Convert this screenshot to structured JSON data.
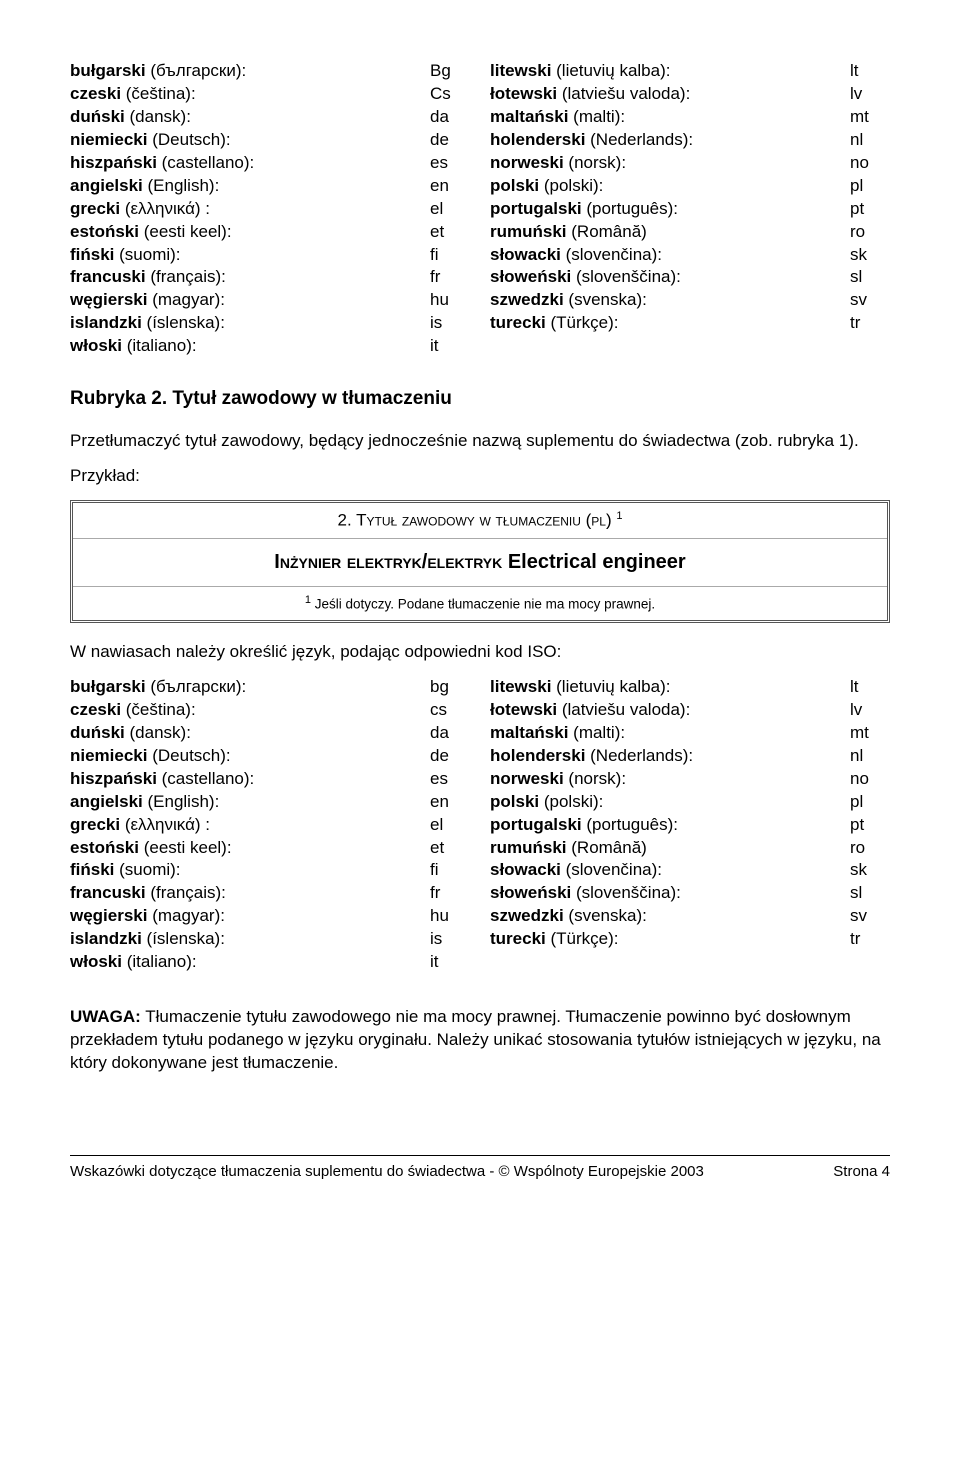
{
  "langTable1": {
    "left": [
      {
        "name": "bułgarski (български):",
        "code": "Bg"
      },
      {
        "name": "czeski (čeština):",
        "code": "Cs"
      },
      {
        "name": "duński (dansk):",
        "code": "da"
      },
      {
        "name": "niemiecki (Deutsch):",
        "code": "de"
      },
      {
        "name": "hiszpański (castellano):",
        "code": "es"
      },
      {
        "name": "angielski (English):",
        "code": "en"
      },
      {
        "name": "grecki (ελληνικά) :",
        "code": "el"
      },
      {
        "name": "estoński (eesti keel):",
        "code": "et"
      },
      {
        "name": "fiński (suomi):",
        "code": "fi"
      },
      {
        "name": "francuski (français):",
        "code": "fr"
      },
      {
        "name": "węgierski (magyar):",
        "code": "hu"
      },
      {
        "name": "islandzki (íslenska):",
        "code": "is"
      },
      {
        "name": "włoski (italiano):",
        "code": "it"
      }
    ],
    "right": [
      {
        "name": "litewski (lietuvių kalba):",
        "code": "lt"
      },
      {
        "name": "łotewski (latviešu valoda):",
        "code": "lv"
      },
      {
        "name": "maltański (malti):",
        "code": "mt"
      },
      {
        "name": "holenderski (Nederlands):",
        "code": "nl"
      },
      {
        "name": "norweski (norsk):",
        "code": "no"
      },
      {
        "name": "polski (polski):",
        "code": "pl"
      },
      {
        "name": "portugalski (português):",
        "code": "pt"
      },
      {
        "name": "rumuński (Română)",
        "code": "ro"
      },
      {
        "name": "słowacki (slovenčina):",
        "code": "sk"
      },
      {
        "name": "słoweński (slovenščina):",
        "code": "sl"
      },
      {
        "name": "szwedzki (svenska):",
        "code": "sv"
      },
      {
        "name": "turecki (Türkçe):",
        "code": "tr"
      }
    ]
  },
  "sectionHeading": "Rubryka 2. Tytuł zawodowy w tłumaczeniu",
  "para1": "Przetłumaczyć tytuł zawodowy, będący jednocześnie nazwą suplementu do świadectwa (zob. rubryka 1).",
  "przyklad": "Przykład:",
  "box": {
    "header_prefix": "2. T",
    "header_rest": "ytuł zawodowy w tłumaczeniu (pl) ",
    "header_sup": "1",
    "mid_a": "Inżynier elektryk/elektryk ",
    "mid_b": "Electrical engineer",
    "footer_sup": "1",
    "footer": " Jeśli dotyczy. Podane tłumaczenie nie ma mocy prawnej."
  },
  "para3": "W nawiasach należy określić język, podając odpowiedni kod ISO:",
  "langTable2": {
    "left": [
      {
        "name": "bułgarski (български):",
        "code": "bg"
      },
      {
        "name": "czeski (čeština):",
        "code": "cs"
      },
      {
        "name": "duński (dansk):",
        "code": "da"
      },
      {
        "name": "niemiecki (Deutsch):",
        "code": "de"
      },
      {
        "name": "hiszpański (castellano):",
        "code": "es"
      },
      {
        "name": "angielski (English):",
        "code": "en"
      },
      {
        "name": "grecki (ελληνικά) :",
        "code": "el"
      },
      {
        "name": "estoński (eesti keel):",
        "code": "et"
      },
      {
        "name": "fiński (suomi):",
        "code": "fi"
      },
      {
        "name": "francuski (français):",
        "code": "fr"
      },
      {
        "name": "węgierski (magyar):",
        "code": "hu"
      },
      {
        "name": "islandzki (íslenska):",
        "code": "is"
      },
      {
        "name": "włoski (italiano):",
        "code": "it"
      }
    ],
    "right": [
      {
        "name": "litewski (lietuvių kalba):",
        "code": "lt"
      },
      {
        "name": "łotewski (latviešu valoda):",
        "code": "lv"
      },
      {
        "name": "maltański (malti):",
        "code": "mt"
      },
      {
        "name": "holenderski (Nederlands):",
        "code": "nl"
      },
      {
        "name": "norweski (norsk):",
        "code": "no"
      },
      {
        "name": "polski (polski):",
        "code": "pl"
      },
      {
        "name": "portugalski (português):",
        "code": "pt"
      },
      {
        "name": "rumuński (Română)",
        "code": "ro"
      },
      {
        "name": "słowacki (slovenčina):",
        "code": "sk"
      },
      {
        "name": "słoweński (slovenščina):",
        "code": "sl"
      },
      {
        "name": "szwedzki (svenska):",
        "code": "sv"
      },
      {
        "name": "turecki (Türkçe):",
        "code": "tr"
      }
    ]
  },
  "uwaga_label": "UWAGA:",
  "uwaga_text": " Tłumaczenie tytułu zawodowego nie ma mocy prawnej. Tłumaczenie powinno być dosłownym przekładem tytułu podanego w języku oryginału. Należy unikać stosowania tytułów istniejących w języku, na który dokonywane jest tłumaczenie.",
  "footerLeft": "Wskazówki dotyczące tłumaczenia suplementu do świadectwa  -  © Wspólnoty Europejskie 2003",
  "footerRight": "Strona 4"
}
